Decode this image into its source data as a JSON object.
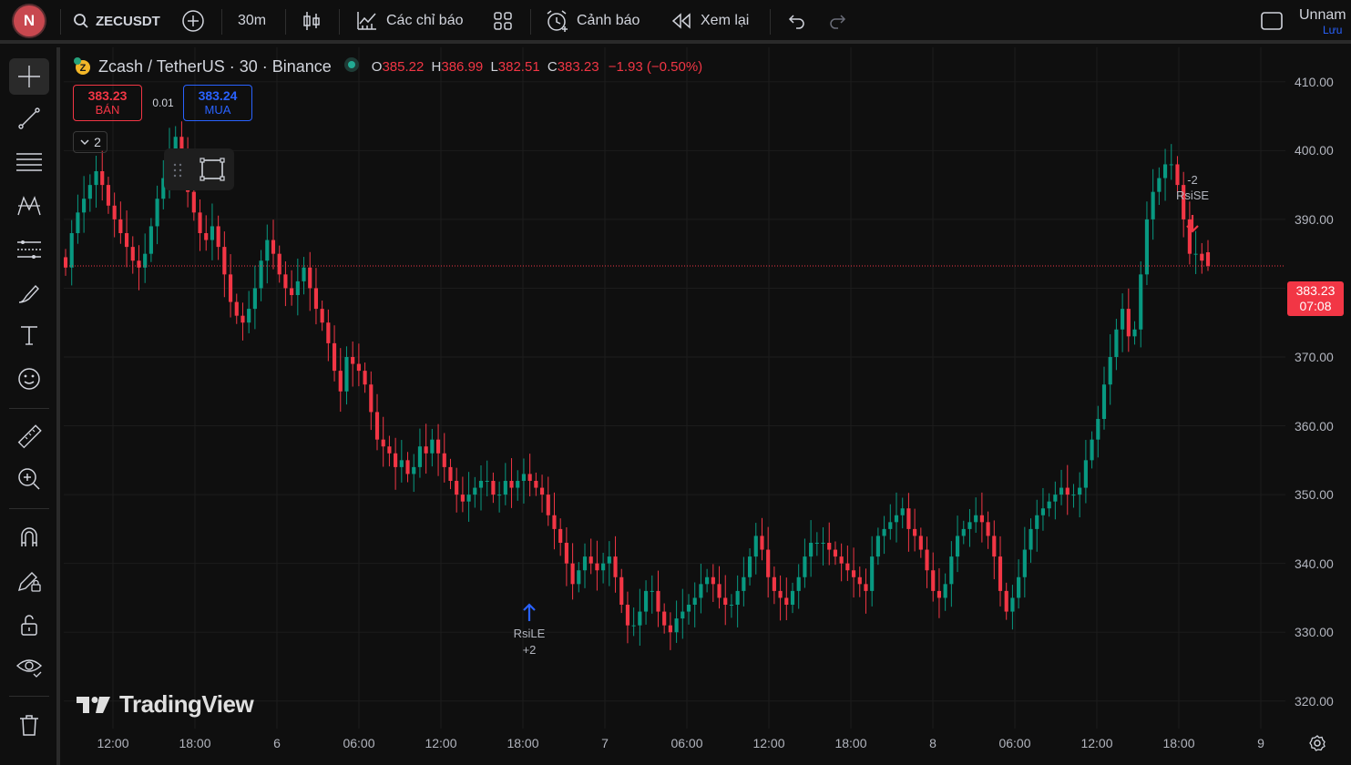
{
  "user": {
    "initial": "N"
  },
  "toolbar": {
    "symbol": "ZECUSDT",
    "interval": "30m",
    "indicators_label": "Các chỉ báo",
    "alerts_label": "Cảnh báo",
    "replay_label": "Xem lại",
    "layout_name": "Unnam",
    "save_label": "Lưu"
  },
  "legend": {
    "title": "Zcash / TetherUS · 30 · Binance",
    "o_label": "O",
    "o": "385.22",
    "h_label": "H",
    "h": "386.99",
    "l_label": "L",
    "l": "382.51",
    "c_label": "C",
    "c": "383.23",
    "change": "−1.93 (−0.50%)"
  },
  "trade": {
    "sell_price": "383.23",
    "sell_label": "BÁN",
    "spread": "0.01",
    "buy_price": "383.24",
    "buy_label": "MUA",
    "collapse_count": "2"
  },
  "watermark": "TradingView",
  "current_price": {
    "price": "383.23",
    "countdown": "07:08"
  },
  "signals": {
    "entry_label": "RsiLE",
    "entry_qty": "+2",
    "exit_label": "RsiSE",
    "exit_qty": "-2"
  },
  "colors": {
    "up": "#089981",
    "down": "#f23645",
    "background": "#0f0f0f",
    "grid": "#1c1c1c"
  },
  "chart_data": {
    "type": "candlestick",
    "symbol": "ZECUSDT",
    "interval": "30",
    "ylim": [
      316,
      415
    ],
    "y_ticks": [
      320,
      330,
      340,
      350,
      360,
      370,
      380,
      390,
      400,
      410
    ],
    "y_tick_labels": [
      "320.00",
      "330.00",
      "340.00",
      "350.00",
      "360.00",
      "370.00",
      "380.00",
      "390.00",
      "400.00",
      "410.00"
    ],
    "x_ticks": [
      "12:00",
      "18:00",
      "6",
      "06:00",
      "12:00",
      "18:00",
      "7",
      "06:00",
      "12:00",
      "18:00",
      "8",
      "06:00",
      "12:00",
      "18:00",
      "9"
    ],
    "last_price": 383.23,
    "closes": [
      383,
      388,
      391,
      393,
      395,
      397,
      395,
      392,
      390,
      388,
      386,
      384,
      383,
      385,
      389,
      393,
      396,
      400,
      402,
      399,
      394,
      391,
      388,
      387,
      389,
      386,
      382,
      378,
      376,
      375,
      377,
      380,
      384,
      387,
      385,
      382,
      380,
      379,
      381,
      383,
      380,
      377,
      375,
      372,
      368,
      365,
      370,
      369,
      368,
      366,
      362,
      358,
      357,
      356,
      354,
      355,
      353,
      354,
      357,
      356,
      358,
      356,
      354,
      352,
      350,
      349,
      350,
      351,
      352,
      352,
      350,
      350,
      352,
      351,
      352,
      353,
      352,
      351,
      350,
      347,
      345,
      343,
      340,
      337,
      339,
      341,
      340,
      339,
      340,
      341,
      338,
      334,
      331,
      331,
      333,
      336,
      336,
      333,
      331,
      330,
      332,
      333,
      334,
      335,
      337,
      338,
      337,
      335,
      334,
      334,
      336,
      338,
      341,
      344,
      342,
      338,
      336,
      335,
      334,
      336,
      338,
      341,
      343,
      343,
      343,
      342,
      341,
      340,
      339,
      338,
      337,
      336,
      341,
      344,
      345,
      346,
      347,
      348,
      345,
      344,
      342,
      339,
      336,
      335,
      337,
      341,
      344,
      345,
      346,
      347,
      346,
      344,
      341,
      336,
      333,
      335,
      338,
      342,
      345,
      347,
      348,
      349,
      350,
      351,
      350,
      350,
      351,
      355,
      358,
      361,
      366,
      370,
      374,
      377,
      373,
      374,
      382,
      390,
      394,
      396,
      398,
      398,
      395,
      390,
      385,
      385,
      384,
      383.23
    ]
  }
}
